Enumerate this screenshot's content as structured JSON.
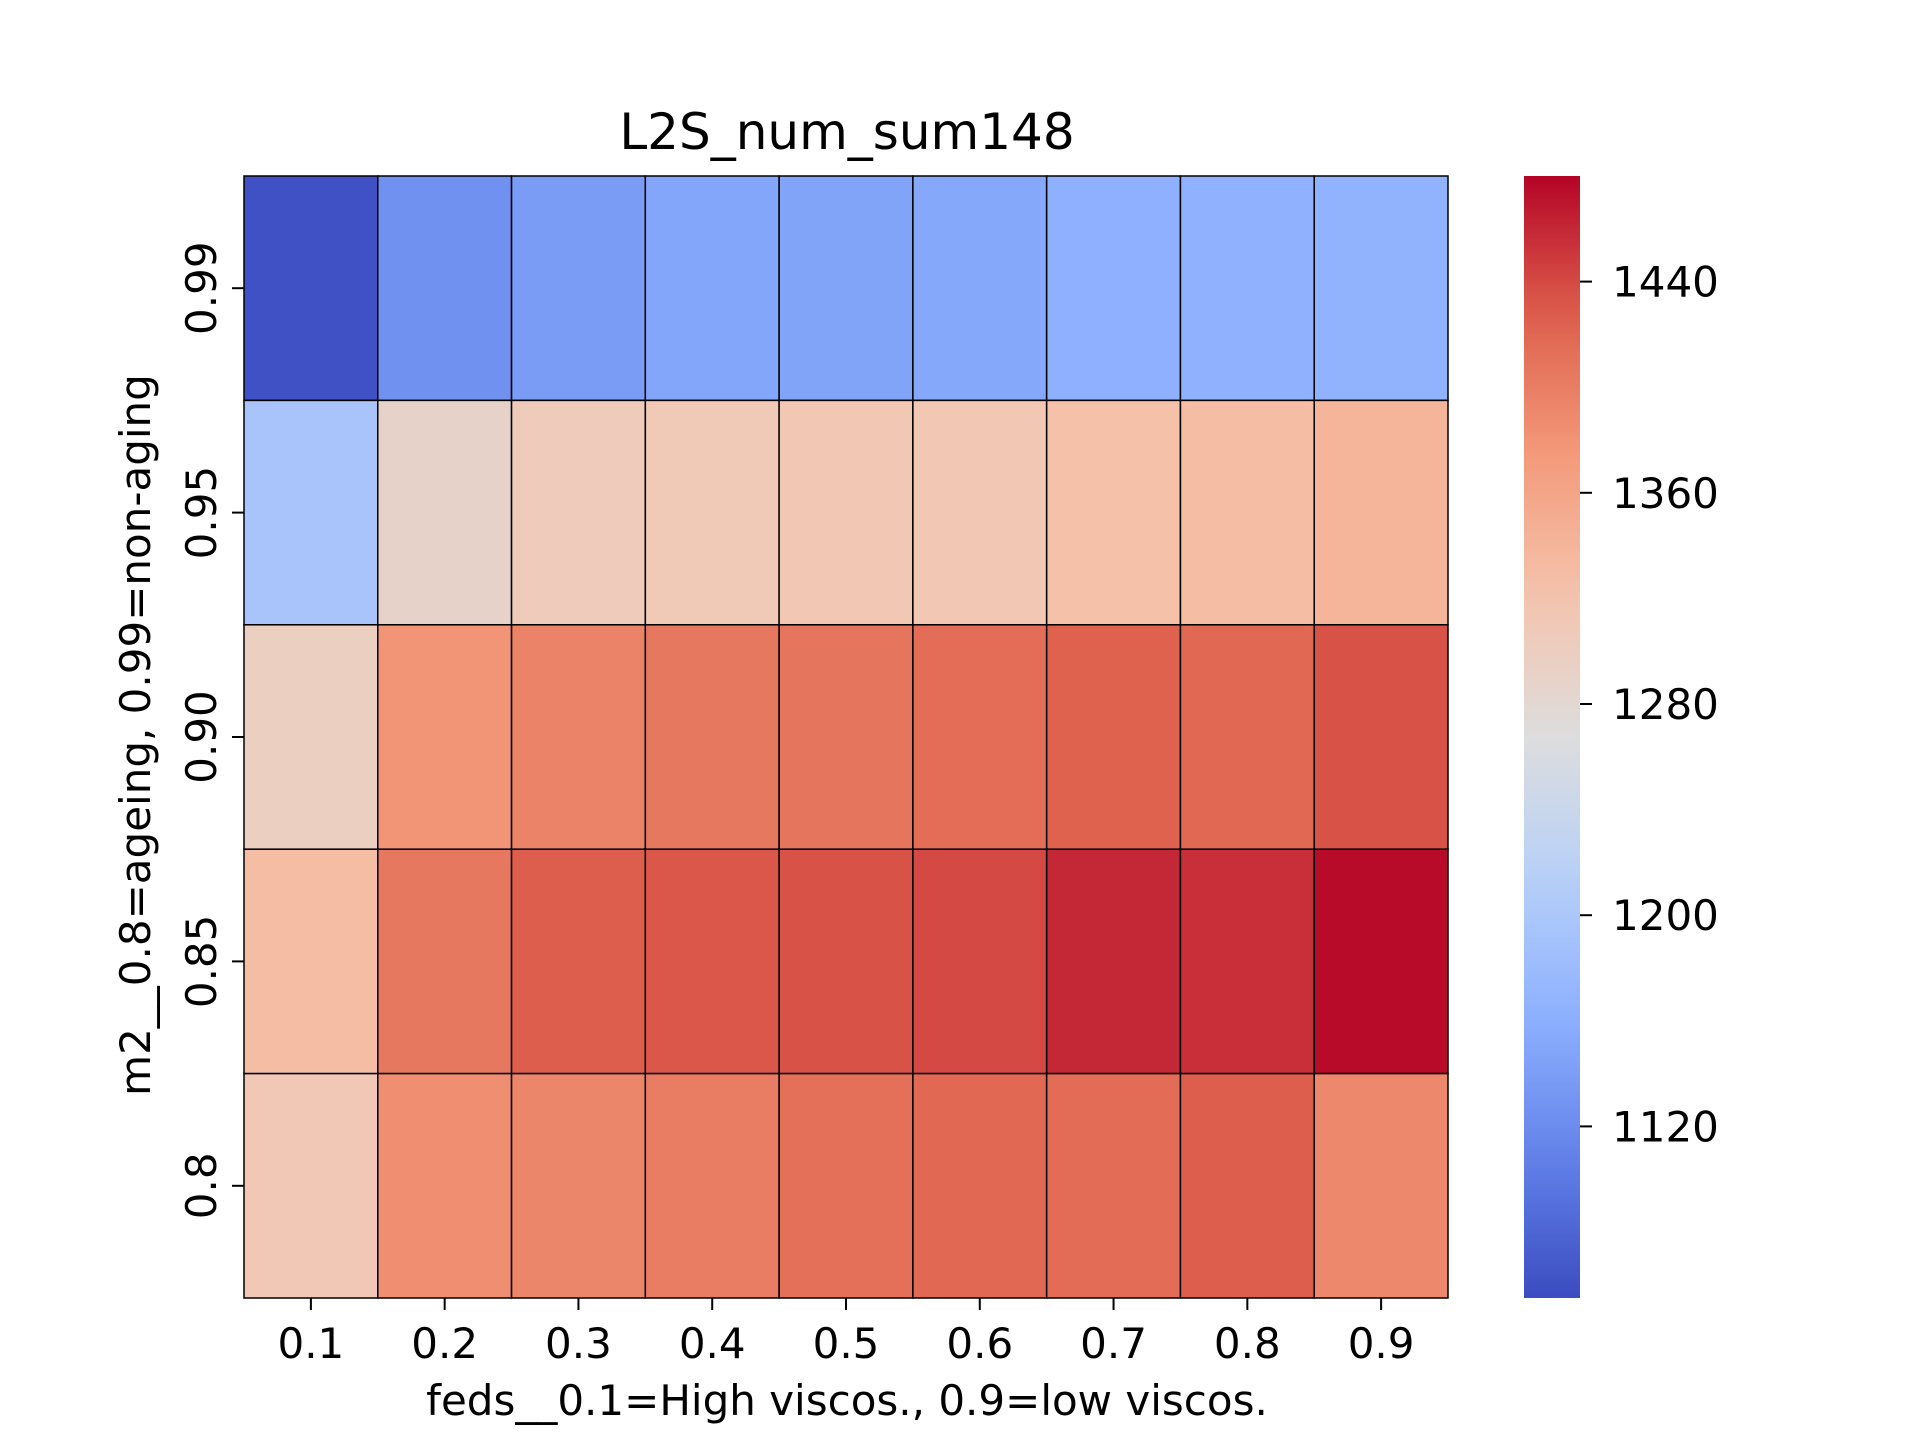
{
  "chart_data": {
    "type": "heatmap",
    "title": "L2S_num_sum148",
    "xlabel": "feds__0.1=High viscos., 0.9=low viscos.",
    "ylabel": "m2__0.8=ageing, 0.99=non-aging",
    "x_categories": [
      "0.1",
      "0.2",
      "0.3",
      "0.4",
      "0.5",
      "0.6",
      "0.7",
      "0.8",
      "0.9"
    ],
    "y_categories": [
      "0.99",
      "0.95",
      "0.90",
      "0.85",
      "0.8"
    ],
    "values": [
      [
        1060,
        1125,
        1138,
        1150,
        1146,
        1152,
        1162,
        1165,
        1166
      ],
      [
        1195,
        1290,
        1305,
        1310,
        1313,
        1314,
        1325,
        1330,
        1340
      ],
      [
        1298,
        1378,
        1395,
        1405,
        1408,
        1415,
        1425,
        1420,
        1435
      ],
      [
        1330,
        1405,
        1428,
        1432,
        1435,
        1440,
        1460,
        1455,
        1476
      ],
      [
        1312,
        1385,
        1392,
        1400,
        1412,
        1420,
        1416,
        1428,
        1390
      ]
    ],
    "colorbar": {
      "min": 1055,
      "max": 1480,
      "ticks": [
        1120,
        1200,
        1280,
        1360,
        1440
      ],
      "colormap": "coolwarm"
    },
    "grid": false,
    "legend": "colorbar-right"
  }
}
